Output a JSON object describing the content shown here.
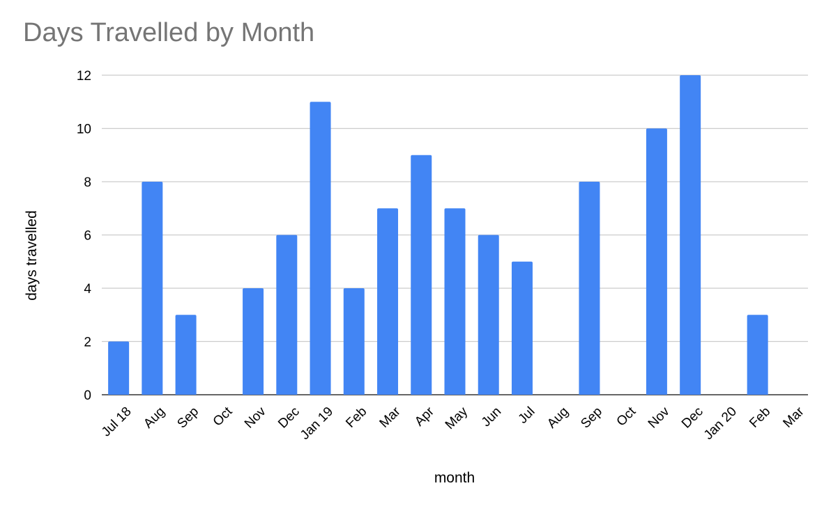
{
  "chart_data": {
    "type": "bar",
    "title": "Days Travelled by Month",
    "xlabel": "month",
    "ylabel": "days travelled",
    "categories": [
      "Jul 18",
      "Aug",
      "Sep",
      "Oct",
      "Nov",
      "Dec",
      "Jan 19",
      "Feb",
      "Mar",
      "Apr",
      "May",
      "Jun",
      "Jul",
      "Aug",
      "Sep",
      "Oct",
      "Nov",
      "Dec",
      "Jan 20",
      "Feb",
      "Mar"
    ],
    "values": [
      2,
      8,
      3,
      0,
      4,
      6,
      11,
      4,
      7,
      9,
      7,
      6,
      5,
      0,
      8,
      0,
      10,
      12,
      0,
      3,
      0
    ],
    "ylim": [
      0,
      12
    ],
    "yticks": [
      0,
      2,
      4,
      6,
      8,
      10,
      12
    ],
    "grid": true,
    "legend": "none",
    "bar_color": "#4285f4"
  }
}
